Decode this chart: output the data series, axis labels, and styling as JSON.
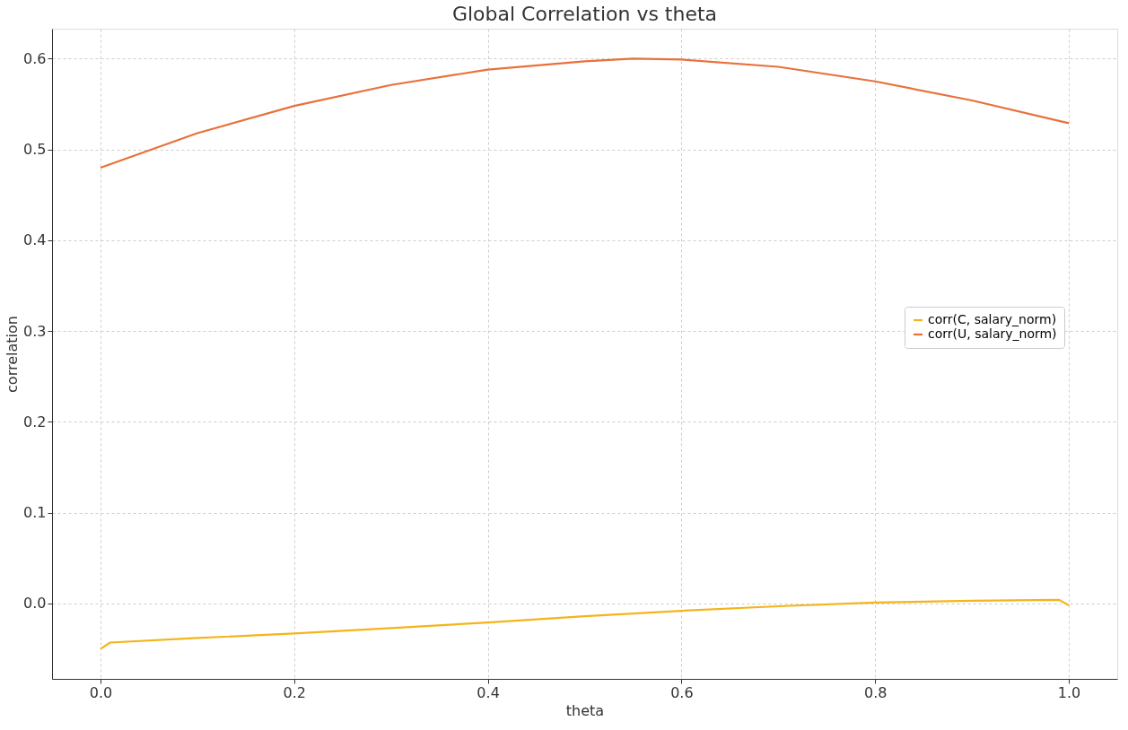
{
  "chart_data": {
    "type": "line",
    "title": "Global Correlation vs theta",
    "xlabel": "theta",
    "ylabel": "correlation",
    "xlim": [
      -0.05,
      1.05
    ],
    "xticks": [
      {
        "value": 0,
        "label": "0.0"
      },
      0.2,
      0.4,
      0.6,
      0.8,
      {
        "value": 1,
        "label": "1.0"
      }
    ],
    "ylim": [
      -0.083,
      0.633
    ],
    "yticks": [
      {
        "value": 0,
        "label": "0.0"
      },
      0.1,
      0.2,
      0.3,
      0.4,
      0.5,
      0.6
    ],
    "grid": true,
    "legend": "right",
    "line_style": "solid",
    "marker": "none",
    "series": [
      {
        "name": "corr(C, salary_norm)",
        "color": "#f4b41a",
        "x": [
          0,
          0.01,
          0.1,
          0.2,
          0.3,
          0.4,
          0.5,
          0.6,
          0.7,
          0.8,
          0.9,
          0.99,
          1.0
        ],
        "values": [
          -0.05,
          -0.043,
          -0.038,
          -0.033,
          -0.027,
          -0.021,
          -0.014,
          -0.008,
          -0.003,
          0.001,
          0.003,
          0.004,
          -0.002
        ]
      },
      {
        "name": "corr(U, salary_norm)",
        "color": "#e8713a",
        "x": [
          0,
          0.1,
          0.2,
          0.3,
          0.4,
          0.5,
          0.55,
          0.6,
          0.7,
          0.8,
          0.9,
          1.0
        ],
        "values": [
          0.48,
          0.518,
          0.548,
          0.571,
          0.588,
          0.597,
          0.6,
          0.599,
          0.591,
          0.575,
          0.554,
          0.529
        ]
      }
    ]
  }
}
